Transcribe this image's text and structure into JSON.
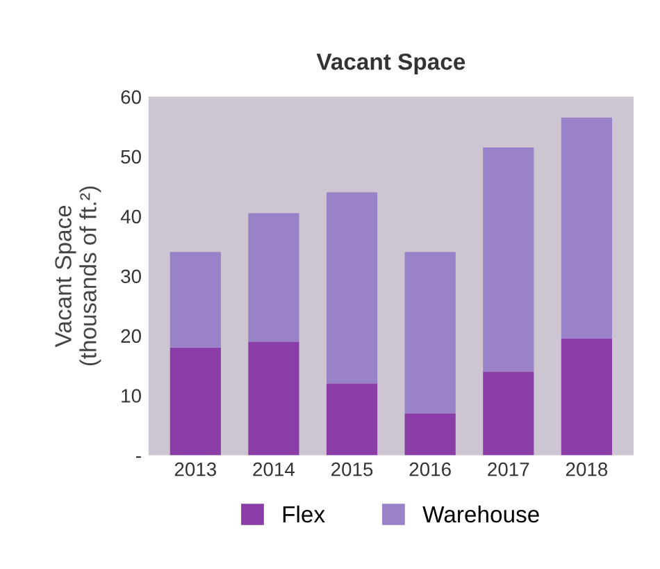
{
  "chart_data": {
    "type": "bar",
    "title": "Vacant Space",
    "ylabel": "Vacant Space\n(thousands of ft.²)",
    "categories": [
      "2013",
      "2014",
      "2015",
      "2016",
      "2017",
      "2018"
    ],
    "stacked": true,
    "series": [
      {
        "name": "Flex",
        "color": "#8a3da6",
        "values": [
          18,
          19,
          12,
          7,
          14,
          19.5
        ]
      },
      {
        "name": "Warehouse",
        "color": "#9a82c8",
        "values": [
          16,
          21.5,
          32,
          27,
          37.5,
          37
        ]
      }
    ],
    "ylim": [
      0,
      60
    ],
    "yticks": [
      {
        "value": 0,
        "label": "-"
      },
      10,
      20,
      30,
      40,
      50,
      60
    ],
    "grid": false,
    "legend": "bottom"
  }
}
